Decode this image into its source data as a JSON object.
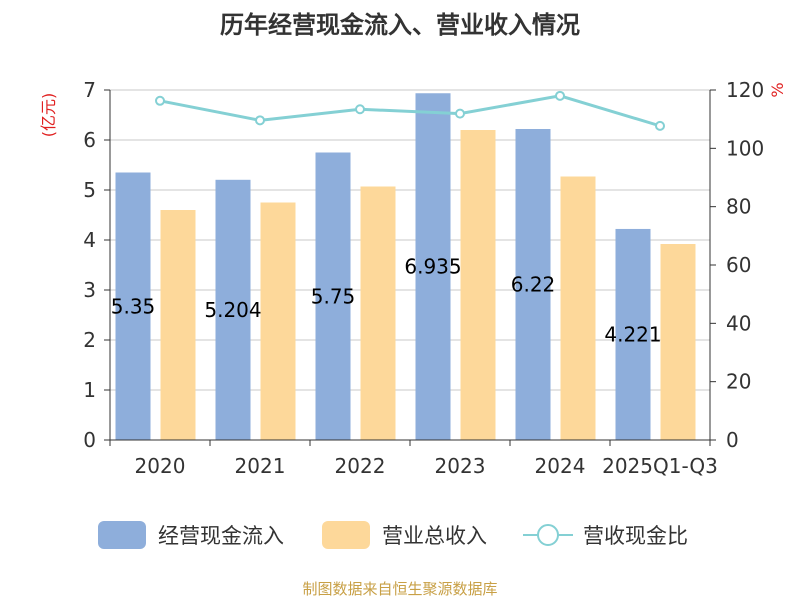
{
  "chart_data": {
    "type": "bar",
    "title": "历年经营现金流入、营业收入情况",
    "categories": [
      "2020",
      "2021",
      "2022",
      "2023",
      "2024",
      "2025Q1-Q3"
    ],
    "y_left_unit": "(亿元)",
    "y_right_unit": "%",
    "y_left_range": [
      0,
      7
    ],
    "y_right_range": [
      0,
      120
    ],
    "y_left_ticks": [
      "0",
      "1",
      "2",
      "3",
      "4",
      "5",
      "6",
      "7"
    ],
    "y_right_ticks": [
      "0",
      "20",
      "40",
      "60",
      "80",
      "100",
      "120"
    ],
    "grid": true,
    "legend_position": "bottom",
    "series": [
      {
        "name": "经营现金流入",
        "type": "bar",
        "axis": "left",
        "color": "#8eaedb",
        "values": [
          5.35,
          5.204,
          5.75,
          6.935,
          6.22,
          4.221
        ],
        "labels": [
          "5.35",
          "5.204",
          "5.75",
          "6.935",
          "6.22",
          "4.221"
        ]
      },
      {
        "name": "营业总收入",
        "type": "bar",
        "axis": "left",
        "color": "#fdd89a",
        "values": [
          4.6,
          4.75,
          5.07,
          6.2,
          5.27,
          3.92
        ]
      },
      {
        "name": "营收现金比",
        "type": "line",
        "axis": "right",
        "color": "#84d0d4",
        "values": [
          116.3,
          109.6,
          113.4,
          111.9,
          118.0,
          107.7
        ]
      }
    ],
    "source": "制图数据来自恒生聚源数据库"
  }
}
